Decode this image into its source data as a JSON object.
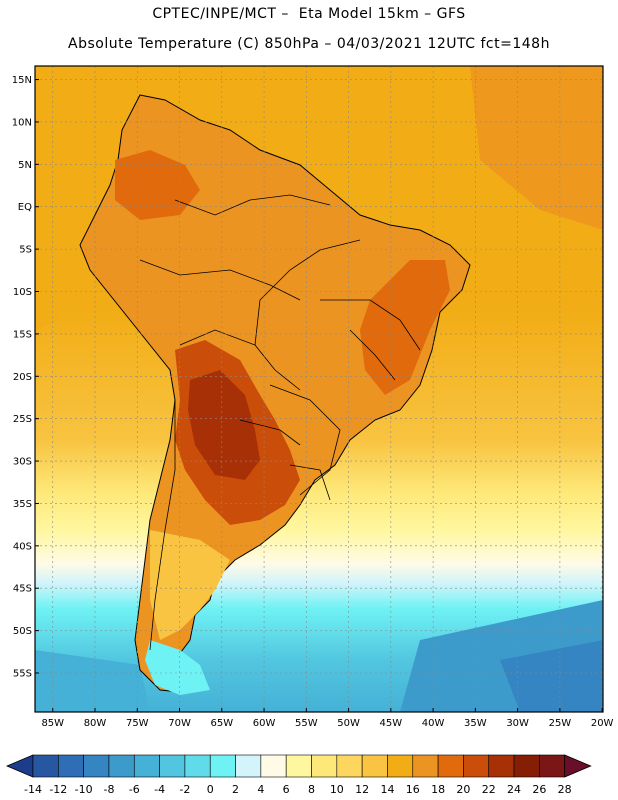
{
  "header": {
    "line1": "CPTEC/INPE/MCT –  Eta Model 15km – GFS",
    "line2": "Absolute Temperature (C) 850hPa – 04/03/2021 12UTC fct=148h"
  },
  "map": {
    "lat_labels": [
      "15N",
      "10N",
      "5N",
      "EQ",
      "5S",
      "10S",
      "15S",
      "20S",
      "25S",
      "30S",
      "35S",
      "40S",
      "45S",
      "50S",
      "55S"
    ],
    "lon_labels": [
      "85W",
      "80W",
      "75W",
      "70W",
      "65W",
      "60W",
      "55W",
      "50W",
      "45W",
      "40W",
      "35W",
      "30W",
      "25W",
      "20W"
    ],
    "lat_values": [
      15,
      10,
      5,
      0,
      -5,
      -10,
      -15,
      -20,
      -25,
      -30,
      -35,
      -40,
      -45,
      -50,
      -55
    ],
    "lon_values": [
      -85,
      -80,
      -75,
      -70,
      -65,
      -60,
      -55,
      -50,
      -45,
      -40,
      -35,
      -30,
      -25,
      -20
    ]
  },
  "colorbar": {
    "labels": [
      "-14",
      "-12",
      "-10",
      "-8",
      "-6",
      "-4",
      "-2",
      "0",
      "2",
      "4",
      "6",
      "8",
      "10",
      "12",
      "14",
      "16",
      "18",
      "20",
      "22",
      "24",
      "26",
      "28"
    ],
    "colors": [
      "#1e3c8c",
      "#2857a2",
      "#2f6eb6",
      "#3585c2",
      "#3c9bcb",
      "#45b1d6",
      "#52c6e0",
      "#60dbe9",
      "#6ff2f4",
      "#d2f4fa",
      "#fffbe6",
      "#fff7a0",
      "#fee879",
      "#fdd660",
      "#f8c441",
      "#f2ad16",
      "#ec9421",
      "#e16a0c",
      "#cb4d0a",
      "#a73007",
      "#861e06",
      "#7a1616",
      "#6a0f2a"
    ]
  }
}
